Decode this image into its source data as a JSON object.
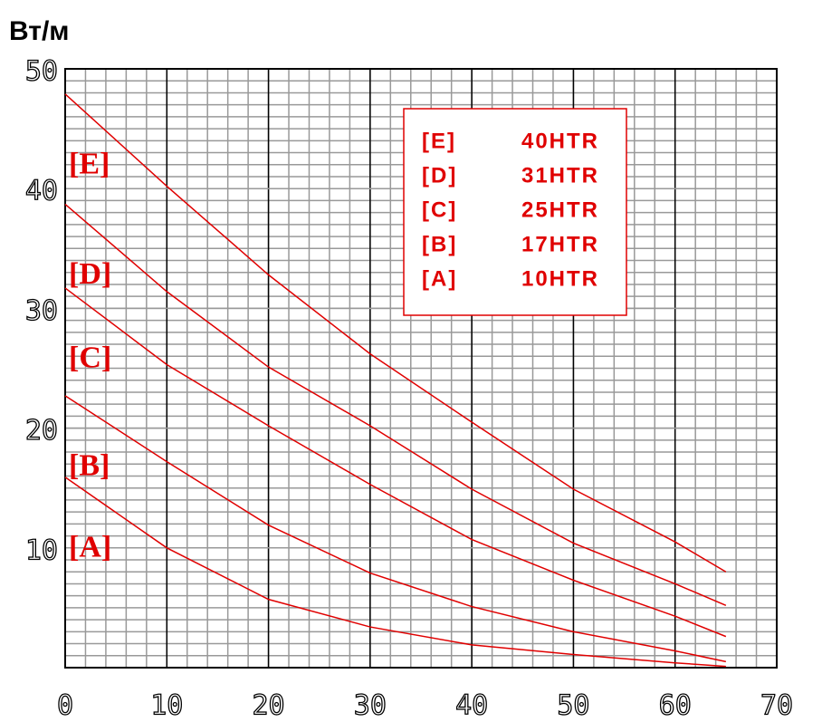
{
  "chart_data": {
    "type": "line",
    "y_label": "Вт/м",
    "x": [
      0,
      10,
      20,
      30,
      40,
      50,
      60,
      65
    ],
    "series": [
      {
        "label": "[E]",
        "name": "40HTR",
        "color": "#e00000",
        "values": [
          47.9,
          40.2,
          32.8,
          26.2,
          20.5,
          14.9,
          10.5,
          8.0
        ]
      },
      {
        "label": "[D]",
        "name": "31HTR",
        "color": "#e00000",
        "values": [
          38.7,
          31.4,
          25.1,
          20.2,
          14.9,
          10.4,
          7.0,
          5.2
        ]
      },
      {
        "label": "[C]",
        "name": "25HTR",
        "color": "#e00000",
        "values": [
          31.7,
          25.3,
          20.2,
          15.3,
          10.7,
          7.3,
          4.3,
          2.6
        ]
      },
      {
        "label": "[B]",
        "name": "17HTR",
        "color": "#e00000",
        "values": [
          22.7,
          17.2,
          11.9,
          7.9,
          5.1,
          3.0,
          1.4,
          0.5
        ]
      },
      {
        "label": "[A]",
        "name": "10HTR",
        "color": "#e00000",
        "values": [
          15.9,
          10.0,
          5.7,
          3.4,
          1.9,
          1.1,
          0.4,
          0.1
        ]
      }
    ],
    "xlim": [
      0,
      70
    ],
    "ylim": [
      0,
      50
    ],
    "xticks": [
      0,
      10,
      20,
      30,
      40,
      50,
      60,
      70
    ],
    "yticks": [
      10,
      20,
      30,
      40,
      50
    ],
    "minor_x_step": 2,
    "minor_y_step": 1,
    "grid": true
  }
}
